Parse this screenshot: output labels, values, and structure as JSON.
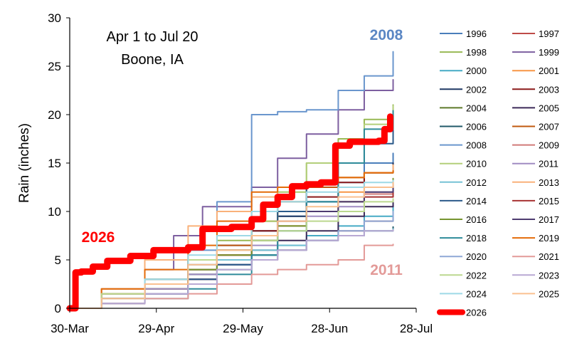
{
  "chart_data": {
    "type": "line",
    "ylabel": "Rain (inches)",
    "ylim": [
      0,
      30
    ],
    "yticks": [
      "0",
      "5",
      "10",
      "15",
      "20",
      "25",
      "30"
    ],
    "xticks": [
      "30-Mar",
      "29-Apr",
      "29-May",
      "28-Jun",
      "28-Jul"
    ],
    "xlim": [
      "30-Mar",
      "28-Jul"
    ],
    "annotations": {
      "title_line1": "Apr 1 to Jul 20",
      "title_line2": "Boone, IA",
      "label_2008": "2008",
      "label_2011": "2011",
      "label_2026": "2026"
    },
    "colors": {
      "1996": "#4a7ebb",
      "1997": "#be4b48",
      "1998": "#98b954",
      "1999": "#7d5fa0",
      "2000": "#46aac5",
      "2001": "#f79646",
      "2002": "#1f3864",
      "2003": "#8b1a1a",
      "2004": "#5e7a2a",
      "2005": "#3c2a59",
      "2006": "#215968",
      "2007": "#c0580f",
      "2008": "#6a96cd",
      "2009": "#d07a78",
      "2010": "#b3cf7a",
      "2011": "#a08cc2",
      "2012": "#76c2d5",
      "2013": "#f9b17a",
      "2014": "#2b5a8a",
      "2015": "#a83232",
      "2016": "#76952f",
      "2017": "#4e3b70",
      "2018": "#2e8b9a",
      "2019": "#e46c0a",
      "2020": "#8fa8d6",
      "2021": "#e39a98",
      "2022": "#bcd88f",
      "2023": "#b9a9d3",
      "2024": "#9ed9e6",
      "2025": "#fac090",
      "2026": "#ff0000"
    },
    "series": [
      {
        "name": "1996",
        "x": [
          "30-Mar",
          "10-Apr",
          "25-Apr",
          "10-May",
          "20-May",
          "1-Jun",
          "10-Jun",
          "20-Jun",
          "1-Jul",
          "10-Jul",
          "20-Jul"
        ],
        "values": [
          0,
          1,
          2.5,
          4.5,
          6,
          8,
          9.5,
          11,
          13,
          15,
          16
        ]
      },
      {
        "name": "1997",
        "x": [
          "30-Mar",
          "10-Apr",
          "25-Apr",
          "10-May",
          "20-May",
          "1-Jun",
          "10-Jun",
          "20-Jun",
          "1-Jul",
          "10-Jul",
          "20-Jul"
        ],
        "values": [
          0,
          0.5,
          1.5,
          3,
          4,
          5,
          6,
          7,
          8,
          9,
          9.5
        ]
      },
      {
        "name": "1998",
        "x": [
          "30-Mar",
          "10-Apr",
          "25-Apr",
          "10-May",
          "20-May",
          "1-Jun",
          "10-Jun",
          "20-Jun",
          "1-Jul",
          "10-Jul",
          "20-Jul"
        ],
        "values": [
          0,
          1.5,
          3,
          5,
          7,
          9,
          12,
          15,
          17.5,
          19.5,
          21
        ]
      },
      {
        "name": "1999",
        "x": [
          "30-Mar",
          "10-Apr",
          "25-Apr",
          "5-May",
          "15-May",
          "1-Jun",
          "10-Jun",
          "20-Jun",
          "1-Jul",
          "10-Jul",
          "20-Jul"
        ],
        "values": [
          0,
          2,
          4,
          7.5,
          10.5,
          12.5,
          15.5,
          18,
          20.5,
          22.5,
          23.6
        ]
      },
      {
        "name": "2000",
        "x": [
          "30-Mar",
          "10-Apr",
          "25-Apr",
          "10-May",
          "20-May",
          "1-Jun",
          "10-Jun",
          "20-Jun",
          "1-Jul",
          "10-Jul",
          "20-Jul"
        ],
        "values": [
          0,
          0.5,
          1.5,
          2.5,
          4,
          5.5,
          6.5,
          7.5,
          8.5,
          9.5,
          10.7
        ]
      },
      {
        "name": "2001",
        "x": [
          "30-Mar",
          "10-Apr",
          "25-Apr",
          "10-May",
          "20-May",
          "1-Jun",
          "10-Jun",
          "20-Jun",
          "1-Jul",
          "10-Jul",
          "20-Jul"
        ],
        "values": [
          0,
          1,
          2.5,
          4,
          5.5,
          7,
          8.5,
          10,
          12,
          14,
          15
        ]
      },
      {
        "name": "2002",
        "x": [
          "30-Mar",
          "10-Apr",
          "25-Apr",
          "10-May",
          "20-May",
          "1-Jun",
          "10-Jun",
          "20-Jun",
          "1-Jul",
          "10-Jul",
          "20-Jul"
        ],
        "values": [
          0,
          1,
          2.5,
          5,
          6.5,
          8,
          9.5,
          11,
          12.5,
          14,
          15
        ]
      },
      {
        "name": "2003",
        "x": [
          "30-Mar",
          "10-Apr",
          "25-Apr",
          "10-May",
          "20-May",
          "1-Jun",
          "10-Jun",
          "20-Jun",
          "1-Jul",
          "10-Jul",
          "20-Jul"
        ],
        "values": [
          0,
          0.5,
          2,
          4,
          6,
          8,
          10,
          11.5,
          13,
          14,
          14.5
        ]
      },
      {
        "name": "2004",
        "x": [
          "30-Mar",
          "10-Apr",
          "25-Apr",
          "10-May",
          "20-May",
          "1-Jun",
          "10-Jun",
          "20-Jun",
          "1-Jul",
          "10-Jul",
          "20-Jul"
        ],
        "values": [
          0,
          1,
          2,
          3.5,
          6,
          9,
          11,
          12.5,
          13.5,
          14,
          14.3
        ]
      },
      {
        "name": "2005",
        "x": [
          "30-Mar",
          "10-Apr",
          "25-Apr",
          "10-May",
          "20-May",
          "1-Jun",
          "10-Jun",
          "20-Jun",
          "1-Jul",
          "10-Jul",
          "20-Jul"
        ],
        "values": [
          0,
          0.5,
          1.5,
          3,
          4.5,
          6,
          7,
          8,
          9.5,
          10.5,
          11
        ]
      },
      {
        "name": "2006",
        "x": [
          "30-Mar",
          "10-Apr",
          "25-Apr",
          "10-May",
          "20-May",
          "1-Jun",
          "10-Jun",
          "20-Jun",
          "1-Jul",
          "10-Jul",
          "20-Jul"
        ],
        "values": [
          0,
          1.5,
          2.5,
          3.5,
          4.5,
          5.5,
          6,
          7,
          7.5,
          8,
          8.4
        ]
      },
      {
        "name": "2007",
        "x": [
          "30-Mar",
          "10-Apr",
          "25-Apr",
          "10-May",
          "20-May",
          "1-Jun",
          "10-Jun",
          "20-Jun",
          "1-Jul",
          "10-Jul",
          "20-Jul"
        ],
        "values": [
          0,
          1.5,
          3,
          5,
          6.5,
          9,
          11,
          12.5,
          13.5,
          14,
          14.2
        ]
      },
      {
        "name": "2008",
        "x": [
          "30-Mar",
          "10-Apr",
          "25-Apr",
          "10-May",
          "20-May",
          "1-Jun",
          "10-Jun",
          "20-Jun",
          "1-Jul",
          "10-Jul",
          "20-Jul"
        ],
        "values": [
          0,
          1,
          3,
          6,
          11,
          20,
          20.3,
          20.5,
          22.5,
          24,
          26.5
        ]
      },
      {
        "name": "2009",
        "x": [
          "30-Mar",
          "10-Apr",
          "25-Apr",
          "10-May",
          "20-May",
          "1-Jun",
          "10-Jun",
          "20-Jun",
          "1-Jul",
          "10-Jul",
          "20-Jul"
        ],
        "values": [
          0,
          1,
          2.5,
          4,
          5.5,
          7,
          8.5,
          10,
          11,
          11.8,
          12.2
        ]
      },
      {
        "name": "2010",
        "x": [
          "30-Mar",
          "10-Apr",
          "25-Apr",
          "10-May",
          "20-May",
          "1-Jun",
          "10-Jun",
          "20-Jun",
          "1-Jul",
          "10-Jul",
          "20-Jul"
        ],
        "values": [
          0,
          1,
          2.5,
          4,
          6,
          9,
          12,
          15,
          17,
          19,
          20.9
        ]
      },
      {
        "name": "2011",
        "x": [
          "30-Mar",
          "10-Apr",
          "25-Apr",
          "10-May",
          "20-May",
          "1-Jun",
          "10-Jun",
          "20-Jun",
          "1-Jul",
          "10-Jul",
          "20-Jul"
        ],
        "values": [
          0,
          1,
          2,
          3.5,
          4.5,
          6.5,
          8,
          9.5,
          10.5,
          12,
          12.8
        ]
      },
      {
        "name": "2012",
        "x": [
          "30-Mar",
          "10-Apr",
          "25-Apr",
          "10-May",
          "20-May",
          "1-Jun",
          "10-Jun",
          "20-Jun",
          "1-Jul",
          "10-Jul",
          "20-Jul"
        ],
        "values": [
          0,
          1,
          2.5,
          4,
          5,
          6,
          6.5,
          7,
          7.5,
          8,
          8.2
        ]
      },
      {
        "name": "2013",
        "x": [
          "30-Mar",
          "10-Apr",
          "25-Apr",
          "10-May",
          "20-May",
          "1-Jun",
          "10-Jun",
          "20-Jun",
          "1-Jul",
          "10-Jul",
          "20-Jul"
        ],
        "values": [
          0,
          2,
          5,
          8.5,
          10,
          11.5,
          12.5,
          13,
          13.5,
          14,
          14.8
        ]
      },
      {
        "name": "2014",
        "x": [
          "30-Mar",
          "10-Apr",
          "25-Apr",
          "10-May",
          "20-May",
          "1-Jun",
          "10-Jun",
          "20-Jun",
          "1-Jul",
          "10-Jul",
          "20-Jul"
        ],
        "values": [
          0,
          0.5,
          1.5,
          3,
          4.5,
          7,
          10,
          13,
          15,
          17,
          18.4
        ]
      },
      {
        "name": "2015",
        "x": [
          "30-Mar",
          "10-Apr",
          "25-Apr",
          "10-May",
          "20-May",
          "1-Jun",
          "10-Jun",
          "20-Jun",
          "1-Jul",
          "10-Jul",
          "20-Jul"
        ],
        "values": [
          0,
          1,
          2.5,
          4,
          5.5,
          7.5,
          9,
          10,
          11,
          11.5,
          12
        ]
      },
      {
        "name": "2016",
        "x": [
          "30-Mar",
          "10-Apr",
          "25-Apr",
          "10-May",
          "20-May",
          "1-Jun",
          "10-Jun",
          "20-Jun",
          "1-Jul",
          "10-Jul",
          "20-Jul"
        ],
        "values": [
          0,
          1,
          2.5,
          4,
          5.5,
          7,
          8.5,
          10,
          11,
          12.5,
          13.4
        ]
      },
      {
        "name": "2017",
        "x": [
          "30-Mar",
          "10-Apr",
          "25-Apr",
          "10-May",
          "20-May",
          "1-Jun",
          "10-Jun",
          "20-Jun",
          "1-Jul",
          "10-Jul",
          "20-Jul"
        ],
        "values": [
          0,
          1,
          3,
          5,
          6,
          7.5,
          9,
          10,
          11,
          12,
          12.9
        ]
      },
      {
        "name": "2018",
        "x": [
          "30-Mar",
          "10-Apr",
          "25-Apr",
          "10-May",
          "20-May",
          "1-Jun",
          "10-Jun",
          "20-Jun",
          "1-Jul",
          "10-Jul",
          "20-Jul"
        ],
        "values": [
          0,
          0.5,
          1,
          2,
          3.5,
          5.5,
          8,
          11,
          15,
          18.5,
          20.4
        ]
      },
      {
        "name": "2019",
        "x": [
          "30-Mar",
          "10-Apr",
          "25-Apr",
          "10-May",
          "20-May",
          "1-Jun",
          "10-Jun",
          "20-Jun",
          "1-Jul",
          "10-Jul",
          "20-Jul"
        ],
        "values": [
          0,
          2,
          4,
          6.5,
          9,
          12,
          12.5,
          13,
          13.5,
          14,
          14.2
        ]
      },
      {
        "name": "2020",
        "x": [
          "30-Mar",
          "10-Apr",
          "25-Apr",
          "10-May",
          "20-May",
          "1-Jun",
          "10-Jun",
          "20-Jun",
          "1-Jul",
          "10-Jul",
          "20-Jul"
        ],
        "values": [
          0,
          0.5,
          1.5,
          2.5,
          4,
          5,
          6,
          7,
          8,
          9,
          10
        ]
      },
      {
        "name": "2021",
        "x": [
          "30-Mar",
          "10-Apr",
          "25-Apr",
          "10-May",
          "20-May",
          "1-Jun",
          "10-Jun",
          "20-Jun",
          "1-Jul",
          "10-Jul",
          "20-Jul"
        ],
        "values": [
          0,
          0.5,
          1,
          1.5,
          2.5,
          3.5,
          4,
          4.5,
          5,
          6.5,
          6.6
        ]
      },
      {
        "name": "2022",
        "x": [
          "30-Mar",
          "10-Apr",
          "25-Apr",
          "10-May",
          "20-May",
          "1-Jun",
          "10-Jun",
          "20-Jun",
          "1-Jul",
          "10-Jul",
          "20-Jul"
        ],
        "values": [
          0,
          1.5,
          3,
          5,
          6,
          7,
          8,
          9,
          10,
          11,
          11.3
        ]
      },
      {
        "name": "2023",
        "x": [
          "30-Mar",
          "10-Apr",
          "25-Apr",
          "10-May",
          "20-May",
          "1-Jun",
          "10-Jun",
          "20-Jun",
          "1-Jul",
          "10-Jul",
          "20-Jul"
        ],
        "values": [
          0,
          0.5,
          1.5,
          2.5,
          4,
          5,
          6,
          7,
          7.5,
          8,
          8.1
        ]
      },
      {
        "name": "2024",
        "x": [
          "30-Mar",
          "10-Apr",
          "25-Apr",
          "10-May",
          "20-May",
          "1-Jun",
          "10-Jun",
          "20-Jun",
          "1-Jul",
          "10-Jul",
          "20-Jul"
        ],
        "values": [
          0,
          1,
          3,
          5.5,
          7.5,
          10,
          11,
          12,
          12.5,
          13,
          13.2
        ]
      },
      {
        "name": "2025",
        "x": [
          "30-Mar",
          "10-Apr",
          "25-Apr",
          "10-May",
          "20-May",
          "1-Jun",
          "10-Jun",
          "20-Jun",
          "1-Jul",
          "10-Jul",
          "20-Jul"
        ],
        "values": [
          0,
          1,
          2.5,
          4.5,
          6,
          7.5,
          9,
          10.5,
          11.5,
          12.5,
          13
        ]
      },
      {
        "name": "2026",
        "x": [
          "30-Mar",
          "1-Apr",
          "3-Apr",
          "7-Apr",
          "12-Apr",
          "20-Apr",
          "28-Apr",
          "10-May",
          "15-May",
          "25-May",
          "1-Jun",
          "5-Jun",
          "10-Jun",
          "15-Jun",
          "20-Jun",
          "25-Jun",
          "30-Jun",
          "5-Jul",
          "15-Jul",
          "17-Jul",
          "19-Jul"
        ],
        "values": [
          0,
          3.7,
          3.8,
          4.3,
          4.9,
          5.4,
          6,
          6.3,
          8.2,
          8.4,
          9.2,
          10.7,
          11.5,
          12.6,
          12.8,
          13,
          16.8,
          17.2,
          17.3,
          18.5,
          19.8
        ]
      }
    ]
  }
}
